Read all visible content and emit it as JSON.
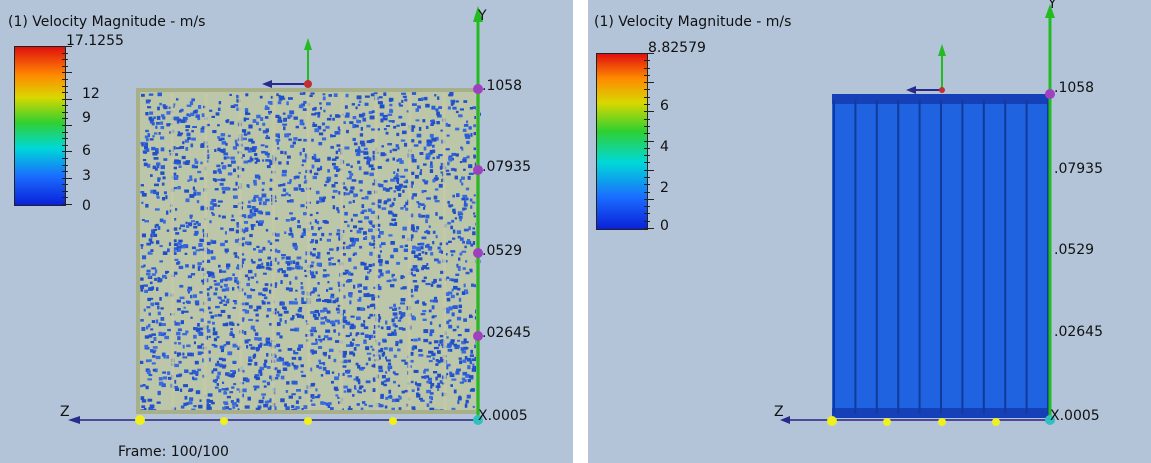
{
  "left_view": {
    "title": "(1) Velocity Magnitude - m/s",
    "colorbar_max_label": "17.1255",
    "colorbar_ticks": [
      "12",
      "9",
      "6",
      "3",
      "0"
    ],
    "axis_labels": [
      ".1058",
      ".07935",
      ".0529",
      ".02645",
      "X.0005"
    ],
    "y_label": "Y",
    "z_label": "Z",
    "frame_label": "Frame: 100/100"
  },
  "right_view": {
    "title": "(1) Velocity Magnitude - m/s",
    "colorbar_max_label": "8.82579",
    "colorbar_ticks": [
      "6",
      "4",
      "2",
      "0"
    ],
    "axis_labels": [
      ".1058",
      ".07935",
      ".0529",
      ".02645",
      "X.0005"
    ],
    "y_label": "Y",
    "z_label": "Z"
  },
  "colors": {
    "background": "#b3c4d9",
    "particle_blue": "#2a5cd8",
    "fluid_blue": "#1f63e0",
    "axis_y": "#22bb22",
    "axis_z": "#2a2a8a",
    "marker_purple": "#a040c0",
    "marker_yellow": "#f0f020"
  }
}
